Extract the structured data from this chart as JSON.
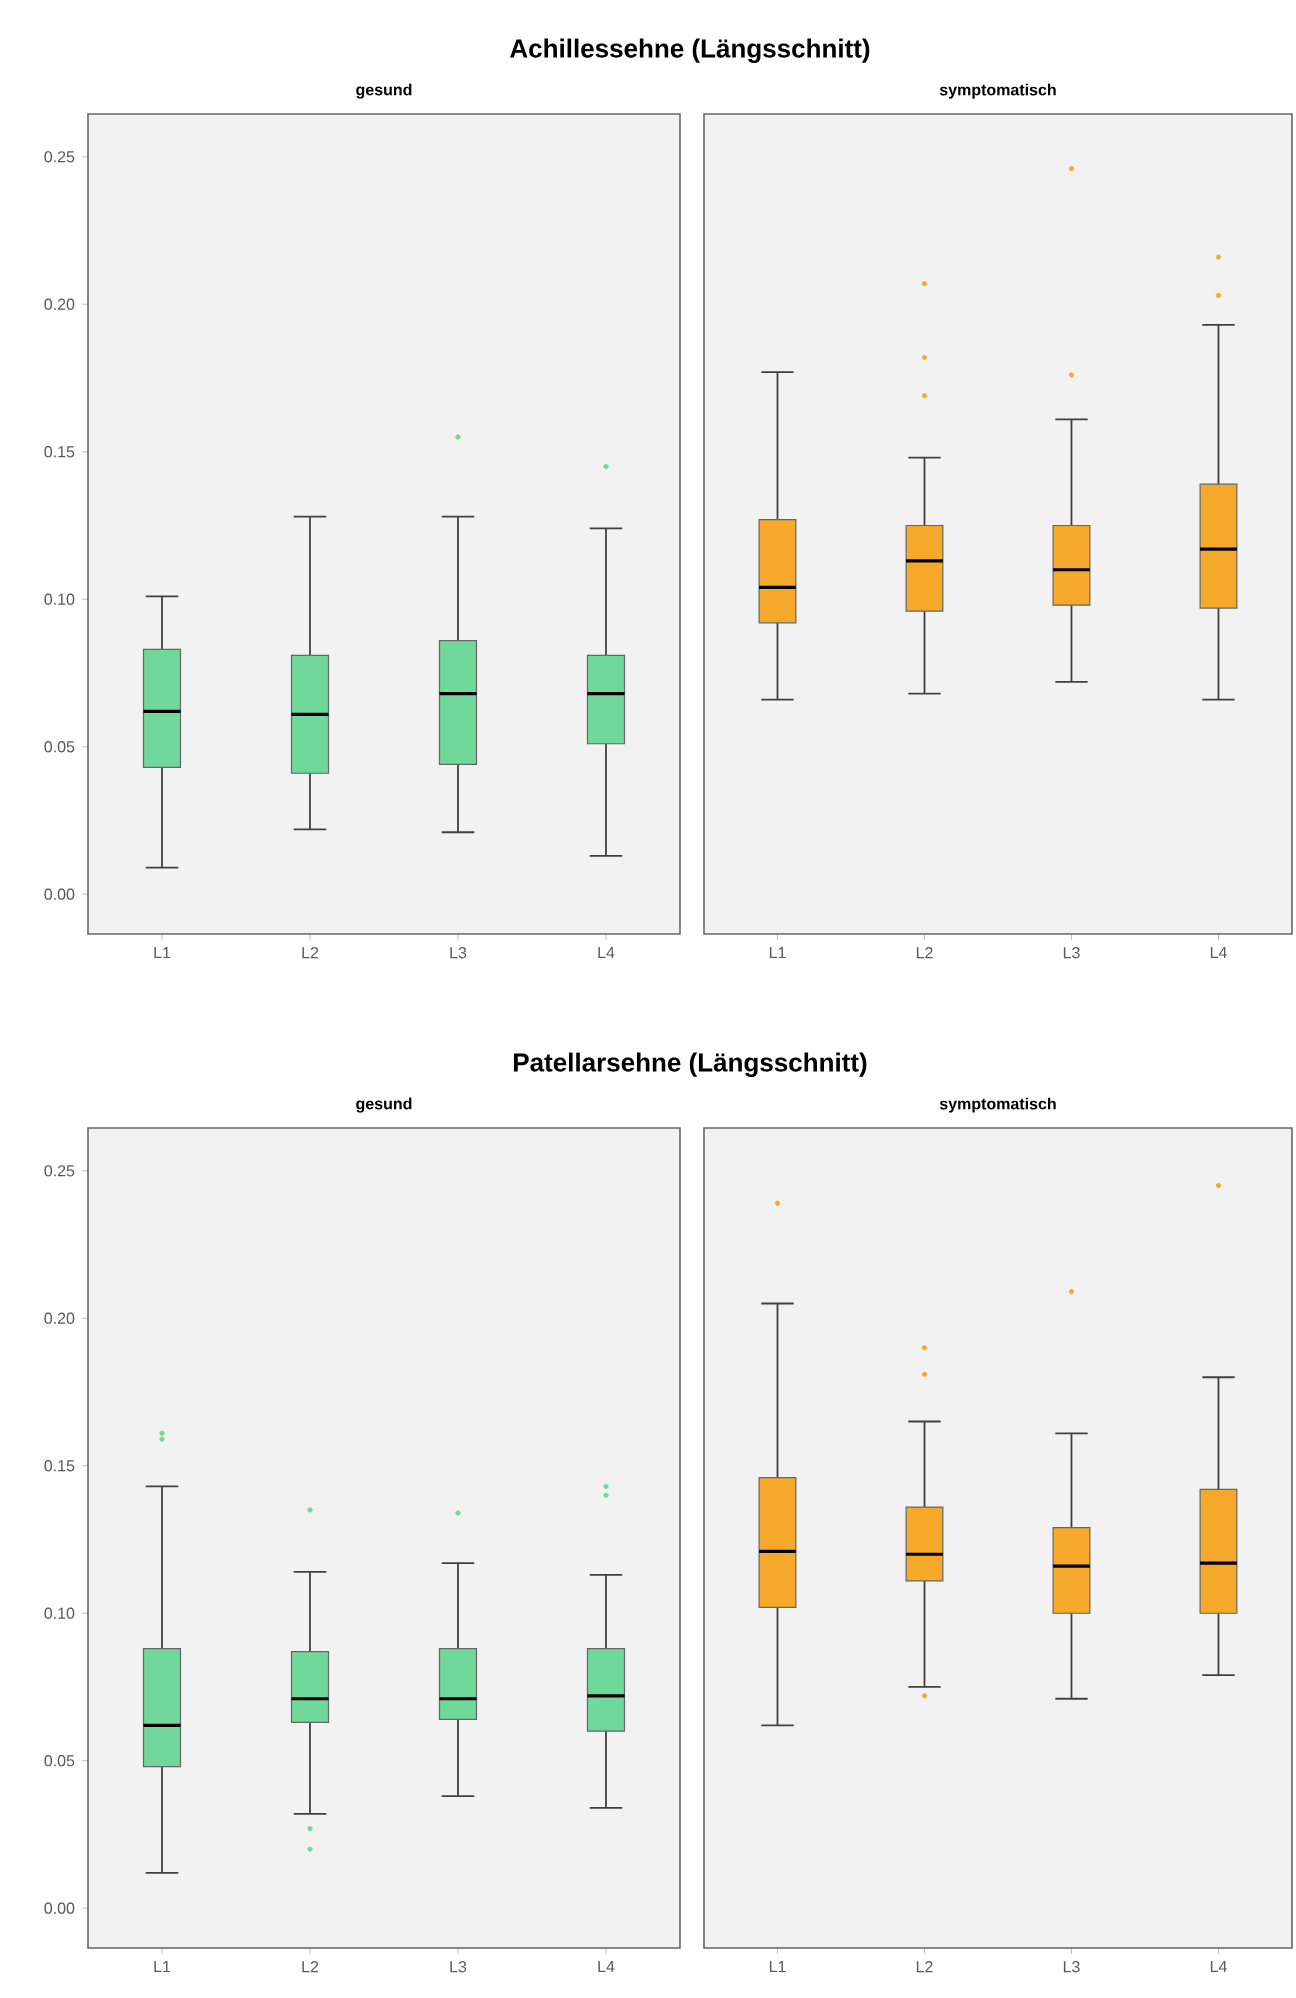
{
  "chart_data": [
    {
      "type": "box",
      "title": "Achillessehne (Längsschnitt)",
      "subtitle": "gesund",
      "categories": [
        "L1",
        "L2",
        "L3",
        "L4"
      ],
      "ylim": [
        -0.0135,
        0.2645
      ],
      "yticks": [
        {
          "value": 0,
          "label": "0.00"
        },
        {
          "value": 0.05,
          "label": "0.05"
        },
        {
          "value": 0.1,
          "label": "0.10"
        },
        {
          "value": 0.15,
          "label": "0.15"
        },
        {
          "value": 0.2,
          "label": "0.20"
        },
        {
          "value": 0.25,
          "label": "0.25"
        }
      ],
      "series": [
        {
          "color": "#6fd89a",
          "boxes": [
            {
              "low": 0.009,
              "q1": 0.043,
              "median": 0.062,
              "q3": 0.083,
              "high": 0.101
            },
            {
              "low": 0.022,
              "q1": 0.041,
              "median": 0.061,
              "q3": 0.081,
              "high": 0.128
            },
            {
              "low": 0.021,
              "q1": 0.044,
              "median": 0.068,
              "q3": 0.086,
              "high": 0.128,
              "outliers": [
                0.155
              ]
            },
            {
              "low": 0.013,
              "q1": 0.051,
              "median": 0.068,
              "q3": 0.081,
              "high": 0.124,
              "outliers": [
                0.145
              ]
            }
          ]
        }
      ]
    },
    {
      "type": "box",
      "subtitle": "symptomatisch",
      "categories": [
        "L1",
        "L2",
        "L3",
        "L4"
      ],
      "ylim": [
        -0.0135,
        0.2645
      ],
      "tick_labels": "x",
      "series": [
        {
          "color": "#f5a82a",
          "boxes": [
            {
              "low": 0.066,
              "q1": 0.092,
              "median": 0.104,
              "q3": 0.127,
              "high": 0.177
            },
            {
              "low": 0.068,
              "q1": 0.096,
              "median": 0.113,
              "q3": 0.125,
              "high": 0.148,
              "outliers": [
                0.169,
                0.182,
                0.207
              ]
            },
            {
              "low": 0.072,
              "q1": 0.098,
              "median": 0.11,
              "q3": 0.125,
              "high": 0.161,
              "outliers": [
                0.176,
                0.246
              ]
            },
            {
              "low": 0.066,
              "q1": 0.097,
              "median": 0.117,
              "q3": 0.139,
              "high": 0.193,
              "outliers": [
                0.203,
                0.216
              ]
            }
          ]
        }
      ]
    },
    {
      "type": "box",
      "title": "Patellarsehne (Längsschnitt)",
      "subtitle": "gesund",
      "categories": [
        "L1",
        "L2",
        "L3",
        "L4"
      ],
      "ylim": [
        -0.0135,
        0.2645
      ],
      "yticks": [
        {
          "value": 0,
          "label": "0.00"
        },
        {
          "value": 0.05,
          "label": "0.05"
        },
        {
          "value": 0.1,
          "label": "0.10"
        },
        {
          "value": 0.15,
          "label": "0.15"
        },
        {
          "value": 0.2,
          "label": "0.20"
        },
        {
          "value": 0.25,
          "label": "0.25"
        }
      ],
      "series": [
        {
          "color": "#6fd89a",
          "boxes": [
            {
              "low": 0.012,
              "q1": 0.048,
              "median": 0.062,
              "q3": 0.088,
              "high": 0.143,
              "outliers": [
                0.159,
                0.161
              ]
            },
            {
              "low": 0.032,
              "q1": 0.063,
              "median": 0.071,
              "q3": 0.087,
              "high": 0.114,
              "outliers": [
                0.02,
                0.027,
                0.135
              ]
            },
            {
              "low": 0.038,
              "q1": 0.064,
              "median": 0.071,
              "q3": 0.088,
              "high": 0.117,
              "outliers": [
                0.134
              ]
            },
            {
              "low": 0.034,
              "q1": 0.06,
              "median": 0.072,
              "q3": 0.088,
              "high": 0.113,
              "outliers": [
                0.14,
                0.143
              ]
            }
          ]
        }
      ]
    },
    {
      "type": "box",
      "subtitle": "symptomatisch",
      "categories": [
        "L1",
        "L2",
        "L3",
        "L4"
      ],
      "ylim": [
        -0.0135,
        0.2645
      ],
      "tick_labels": "x",
      "series": [
        {
          "color": "#f5a82a",
          "boxes": [
            {
              "low": 0.062,
              "q1": 0.102,
              "median": 0.121,
              "q3": 0.146,
              "high": 0.205,
              "outliers": [
                0.239
              ]
            },
            {
              "low": 0.075,
              "q1": 0.111,
              "median": 0.12,
              "q3": 0.136,
              "high": 0.165,
              "outliers": [
                0.072,
                0.181,
                0.19
              ]
            },
            {
              "low": 0.071,
              "q1": 0.1,
              "median": 0.116,
              "q3": 0.129,
              "high": 0.161,
              "outliers": [
                0.209
              ]
            },
            {
              "low": 0.079,
              "q1": 0.1,
              "median": 0.117,
              "q3": 0.142,
              "high": 0.18,
              "outliers": [
                0.245
              ]
            }
          ]
        }
      ]
    }
  ]
}
